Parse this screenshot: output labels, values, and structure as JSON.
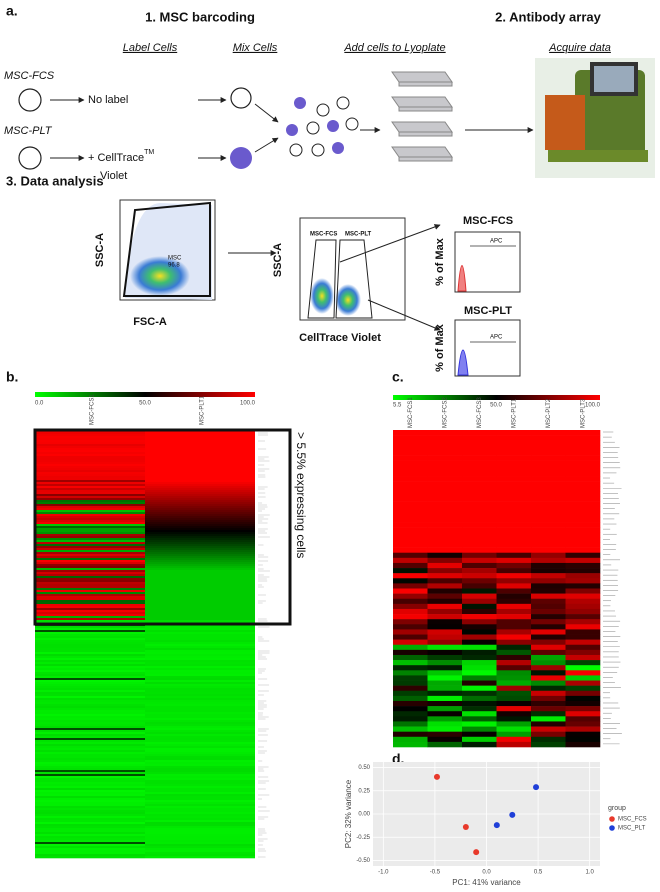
{
  "panel_a": {
    "label": "a.",
    "step1": "1. MSC barcoding",
    "step2": "2. Antibody array",
    "steps": [
      "Label Cells",
      "Mix Cells",
      "Add cells to Lyoplate",
      "Acquire data"
    ],
    "samples": [
      "MSC-FCS",
      "MSC-PLT"
    ],
    "no_label": "No label",
    "celltrace": "+ CellTrace",
    "tm": "TM",
    "violet": "Violet",
    "step3": "3. Data analysis",
    "plot1": {
      "y_label": "SSC-A",
      "x_label": "FSC-A",
      "gate": "MSC",
      "gate_value": "96.8"
    },
    "plot2": {
      "y_label": "SSC-A",
      "x_label": "CellTrace Violet",
      "gates": [
        "MSC-FCS",
        "MSC-PLT"
      ]
    },
    "histograms": [
      {
        "title": "MSC-FCS",
        "y_label": "% of Max",
        "marker": "APC"
      },
      {
        "title": "MSC-PLT",
        "y_label": "% of Max",
        "marker": "APC"
      }
    ]
  },
  "panel_b": {
    "label": "b.",
    "scale_labels": [
      "0.0",
      "50.0",
      "100.0"
    ],
    "columns": [
      "MSC-FCS1",
      "MSC-PLT1"
    ],
    "annotation": "> 5.5% expressing cells"
  },
  "panel_c": {
    "label": "c.",
    "scale_labels": [
      "5.5",
      "50.0",
      "100.0"
    ],
    "columns": [
      "MSC-FCS1",
      "MSC-FCS2",
      "MSC-FCS3",
      "MSC-PLT1",
      "MSC-PLT2",
      "MSC-PLT3"
    ]
  },
  "chart_data": {
    "type": "scatter",
    "label": "d.",
    "x_label": "PC1: 41% variance",
    "y_label": "PC2: 32% variance",
    "legend_title": "group",
    "xlim": [
      -1.1,
      1.1
    ],
    "ylim": [
      -0.56,
      0.56
    ],
    "xticks": [
      {
        "value": -1,
        "label": "-1.0"
      },
      {
        "value": -0.5,
        "label": "-0.5"
      },
      {
        "value": 0,
        "label": "0.0"
      },
      {
        "value": 0.5,
        "label": "0.5"
      },
      {
        "value": 1,
        "label": "1.0"
      }
    ],
    "yticks": [
      {
        "value": -0.5,
        "label": "-0.50"
      },
      {
        "value": -0.25,
        "label": "-0.25"
      },
      {
        "value": 0,
        "label": "0.00"
      },
      {
        "value": 0.25,
        "label": "0.25"
      },
      {
        "value": 0.5,
        "label": "0.50"
      }
    ],
    "grid": true,
    "series": [
      {
        "name": "MSC_FCS",
        "color": "#e8392b",
        "x": [
          -0.48,
          -0.2,
          -0.1
        ],
        "values": [
          0.4,
          -0.14,
          -0.41
        ]
      },
      {
        "name": "MSC_PLT",
        "color": "#1f3fd8",
        "x": [
          0.1,
          0.25,
          0.48
        ],
        "values": [
          -0.12,
          -0.01,
          0.29
        ]
      }
    ]
  }
}
